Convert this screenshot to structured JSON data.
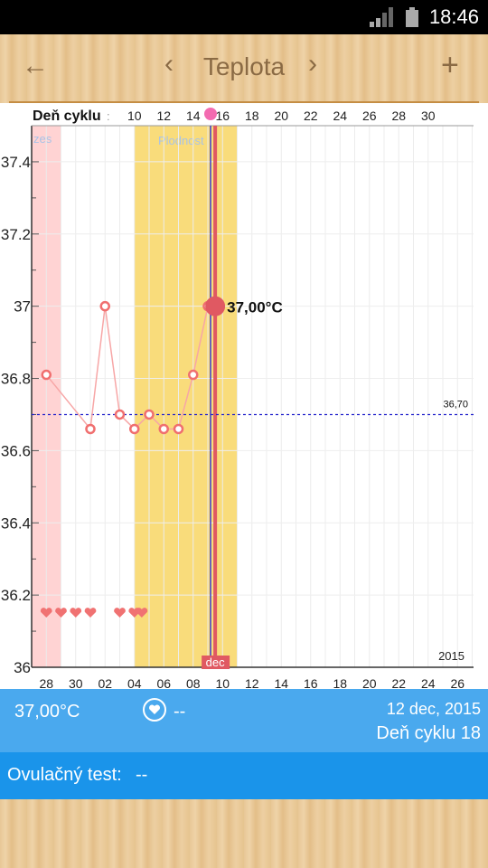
{
  "status_bar": {
    "time": "18:46"
  },
  "header": {
    "title": "Teplota",
    "back_icon": "←",
    "prev_icon": "‹",
    "next_icon": "›",
    "add_icon": "+"
  },
  "chart_data": {
    "type": "line",
    "top_axis_label": "Deň cyklu",
    "cycle_days": [
      "10",
      "12",
      "14",
      "16",
      "18",
      "20",
      "22",
      "24",
      "26",
      "28",
      "30"
    ],
    "date_ticks": [
      "28",
      "30",
      "02",
      "04",
      "06",
      "08",
      "10",
      "12",
      "14",
      "16",
      "18",
      "20",
      "22",
      "24",
      "26"
    ],
    "y_ticks": [
      "36",
      "36.2",
      "36.4",
      "36.6",
      "36.8",
      "37",
      "37.2",
      "37.4"
    ],
    "ylim": [
      36.0,
      37.5
    ],
    "period_label": "zes",
    "fertile_label": "Plodnost",
    "month_label": "dec",
    "year_label": "2015",
    "coverline_value": 36.7,
    "coverline_label": "36,70",
    "current_label": "37,00°C",
    "series": [
      {
        "x": [
          1,
          4,
          5,
          6,
          7,
          8,
          9,
          10,
          11,
          12
        ],
        "values": [
          36.81,
          36.66,
          37.0,
          36.7,
          36.66,
          36.7,
          36.66,
          36.66,
          36.81,
          37.0
        ]
      }
    ],
    "current_point": {
      "x": 12.5,
      "value": 37.0
    },
    "hearts_x": [
      1,
      2,
      3,
      4,
      6,
      7,
      7.5
    ],
    "colors": {
      "line": "#f7a6a6",
      "marker": "#f06f6f",
      "period": "#ffd3d3",
      "fertile": "#f9dc7b",
      "today": "#e05962",
      "ovulation": "#3b3bc9",
      "coverline": "#2222cc"
    }
  },
  "info": {
    "temperature": "37,00°C",
    "notes": "--",
    "date": "12 dec, 2015",
    "cycle_day": "Deň cyklu 18"
  },
  "ovulation_test": {
    "label": "Ovulačný test:",
    "value": "--"
  }
}
